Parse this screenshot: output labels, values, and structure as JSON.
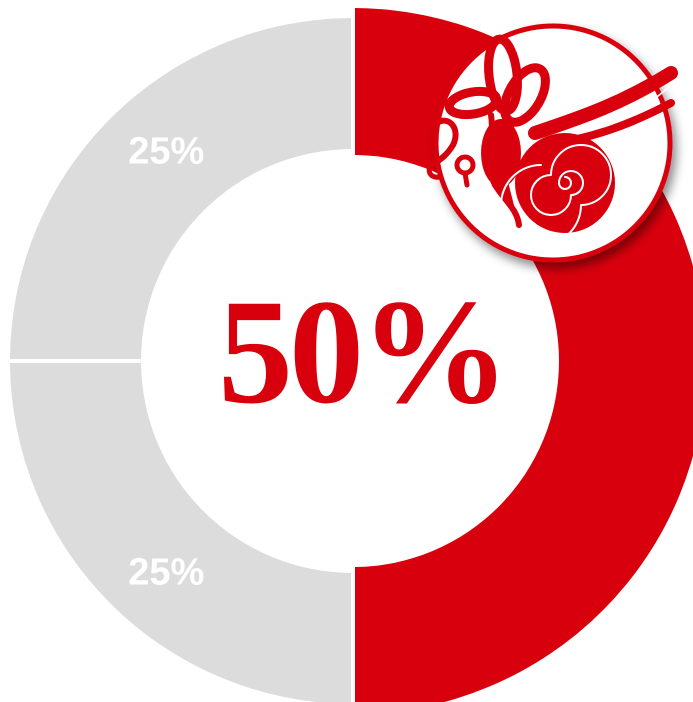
{
  "chart_data": {
    "type": "pie",
    "donut": true,
    "slices": [
      {
        "label": "50%",
        "value": 50,
        "color": "#D9000D"
      },
      {
        "label": "25%",
        "value": 25,
        "color": "#DCDCDC"
      },
      {
        "label": "25%",
        "value": 25,
        "color": "#DCDCDC"
      }
    ],
    "center_label": "50%",
    "center_label_color": "#D9000D",
    "highlighted_slice": 0,
    "badge_icon": "inner-ear-cochlea-icon",
    "badge_color": "#D9000D"
  }
}
